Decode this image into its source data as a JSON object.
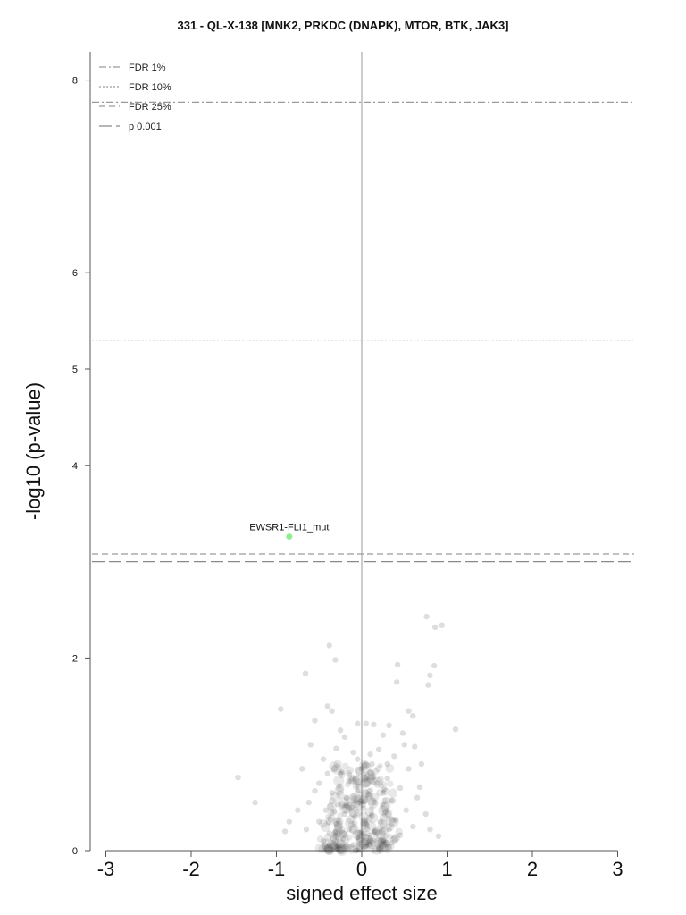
{
  "chart_data": {
    "type": "scatter",
    "title": "331 - QL-X-138 [MNK2, PRKDC (DNAPK), MTOR, BTK, JAK3]",
    "xlabel": "signed effect size",
    "ylabel": "-log10 (p-value)",
    "xlim": [
      -3.3,
      3.2
    ],
    "ylim": [
      0,
      8.3
    ],
    "x_ticks": [
      "-3",
      "-2",
      "-1",
      "0",
      "1",
      "2",
      "3"
    ],
    "y_ticks": [
      "0",
      "2",
      "4",
      "5",
      "6",
      "8"
    ],
    "grid": false,
    "legend_position": "top-left",
    "thresholds": [
      {
        "name": "FDR 1%",
        "y": 7.77,
        "style": "dashdot",
        "color": "#9a9a9a"
      },
      {
        "name": "FDR 10%",
        "y": 5.3,
        "style": "dotted",
        "color": "#9a9a9a"
      },
      {
        "name": "FDR 25%",
        "y": 3.08,
        "style": "dashed",
        "color": "#9a9a9a"
      },
      {
        "name": "p 0.001",
        "y": 3.0,
        "style": "longdash",
        "color": "#8a8a8a"
      }
    ],
    "highlight": {
      "label": "EWSR1-FLI1_mut",
      "x": -0.85,
      "y": 3.26,
      "color": "#90ee90"
    },
    "points": [
      [
        0.76,
        2.43
      ],
      [
        0.86,
        2.32
      ],
      [
        0.94,
        2.34
      ],
      [
        -0.38,
        2.13
      ],
      [
        -0.31,
        1.98
      ],
      [
        0.8,
        1.82
      ],
      [
        0.85,
        1.92
      ],
      [
        -0.66,
        1.84
      ],
      [
        0.41,
        1.75
      ],
      [
        1.1,
        1.26
      ],
      [
        -0.95,
        1.47
      ],
      [
        -1.45,
        0.76
      ],
      [
        -1.25,
        0.5
      ],
      [
        0.42,
        1.93
      ],
      [
        0.78,
        1.72
      ],
      [
        -0.4,
        1.5
      ],
      [
        -0.35,
        1.45
      ],
      [
        0.55,
        1.45
      ],
      [
        0.6,
        1.4
      ],
      [
        -0.55,
        1.35
      ],
      [
        0.32,
        1.3
      ],
      [
        -0.05,
        1.32
      ],
      [
        0.05,
        1.32
      ],
      [
        0.14,
        1.31
      ],
      [
        0.25,
        1.2
      ],
      [
        -0.2,
        1.18
      ],
      [
        0.48,
        1.22
      ],
      [
        -0.6,
        1.1
      ],
      [
        0.62,
        1.08
      ],
      [
        -0.3,
        1.06
      ],
      [
        0.2,
        1.05
      ],
      [
        -0.1,
        1.02
      ],
      [
        0.1,
        1.0
      ],
      [
        -0.45,
        0.95
      ],
      [
        0.38,
        0.98
      ],
      [
        0.7,
        0.9
      ],
      [
        -0.7,
        0.85
      ],
      [
        0.55,
        0.85
      ],
      [
        -0.25,
        0.8
      ],
      [
        0.3,
        0.75
      ],
      [
        0.0,
        0.85
      ],
      [
        -0.15,
        0.72
      ],
      [
        0.18,
        0.7
      ],
      [
        -0.5,
        0.7
      ],
      [
        0.45,
        0.65
      ],
      [
        -0.35,
        0.6
      ],
      [
        0.25,
        0.6
      ],
      [
        -0.05,
        0.62
      ],
      [
        0.08,
        0.58
      ],
      [
        0.65,
        0.55
      ],
      [
        -0.62,
        0.5
      ],
      [
        0.35,
        0.52
      ],
      [
        -0.28,
        0.48
      ],
      [
        0.15,
        0.5
      ],
      [
        -0.12,
        0.45
      ],
      [
        0.52,
        0.42
      ],
      [
        -0.42,
        0.42
      ],
      [
        0.02,
        0.44
      ],
      [
        0.28,
        0.4
      ],
      [
        -0.2,
        0.38
      ],
      [
        0.12,
        0.36
      ],
      [
        -0.08,
        0.35
      ],
      [
        0.4,
        0.32
      ],
      [
        -0.5,
        0.3
      ],
      [
        0.22,
        0.3
      ],
      [
        -0.3,
        0.28
      ],
      [
        0.05,
        0.28
      ],
      [
        0.6,
        0.25
      ],
      [
        -0.65,
        0.22
      ],
      [
        0.32,
        0.22
      ],
      [
        -0.15,
        0.22
      ],
      [
        0.15,
        0.2
      ],
      [
        -0.38,
        0.18
      ],
      [
        0.0,
        0.2
      ],
      [
        0.45,
        0.16
      ],
      [
        -0.05,
        0.14
      ],
      [
        0.1,
        0.13
      ],
      [
        -0.22,
        0.12
      ],
      [
        0.25,
        0.1
      ],
      [
        -0.45,
        0.1
      ],
      [
        0.35,
        0.08
      ],
      [
        -0.1,
        0.06
      ],
      [
        0.05,
        0.05
      ],
      [
        -0.3,
        0.04
      ],
      [
        0.2,
        0.03
      ],
      [
        -0.75,
        0.42
      ],
      [
        0.75,
        0.38
      ],
      [
        -0.85,
        0.3
      ],
      [
        0.8,
        0.22
      ],
      [
        -0.55,
        0.62
      ],
      [
        0.68,
        0.66
      ],
      [
        -0.9,
        0.2
      ],
      [
        0.9,
        0.15
      ],
      [
        -0.05,
        0.95
      ],
      [
        0.12,
        0.9
      ],
      [
        -0.18,
        0.55
      ],
      [
        0.3,
        0.9
      ],
      [
        -0.4,
        0.8
      ],
      [
        0.5,
        1.1
      ],
      [
        -0.25,
        1.25
      ]
    ]
  }
}
